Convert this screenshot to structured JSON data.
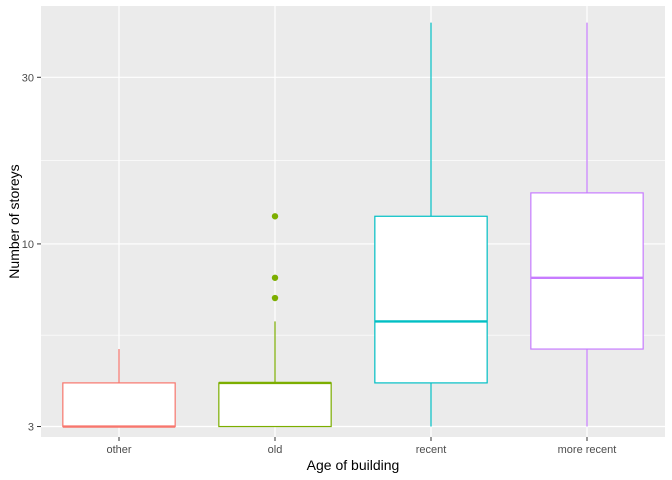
{
  "chart_data": {
    "type": "boxplot",
    "xlabel": "Age of building",
    "ylabel": "Number of storeys",
    "y_scale": "log10",
    "ylim": [
      2.8,
      48
    ],
    "y_ticks": [
      3,
      10,
      30
    ],
    "y_tick_labels": [
      "3",
      "10",
      "30"
    ],
    "categories": [
      "other",
      "old",
      "recent",
      "more recent"
    ],
    "boxes": [
      {
        "category": "other",
        "color": "#F8766D",
        "lower_whisker": 3,
        "q1": 3,
        "median": 3,
        "q3": 4,
        "upper_whisker": 5,
        "outliers": []
      },
      {
        "category": "old",
        "color": "#7CAE00",
        "lower_whisker": 3,
        "q1": 3,
        "median": 4,
        "q3": 4,
        "upper_whisker": 6,
        "outliers": [
          7,
          8,
          12
        ]
      },
      {
        "category": "recent",
        "color": "#00BFC4",
        "lower_whisker": 3,
        "q1": 4,
        "median": 6,
        "q3": 12,
        "upper_whisker": 43,
        "outliers": []
      },
      {
        "category": "more recent",
        "color": "#C77CFF",
        "lower_whisker": 3,
        "q1": 5,
        "median": 8,
        "q3": 14,
        "upper_whisker": 43,
        "outliers": []
      }
    ],
    "grid": true,
    "legend": "none",
    "panel_background": "#EBEBEB",
    "grid_color": "#FFFFFF"
  }
}
